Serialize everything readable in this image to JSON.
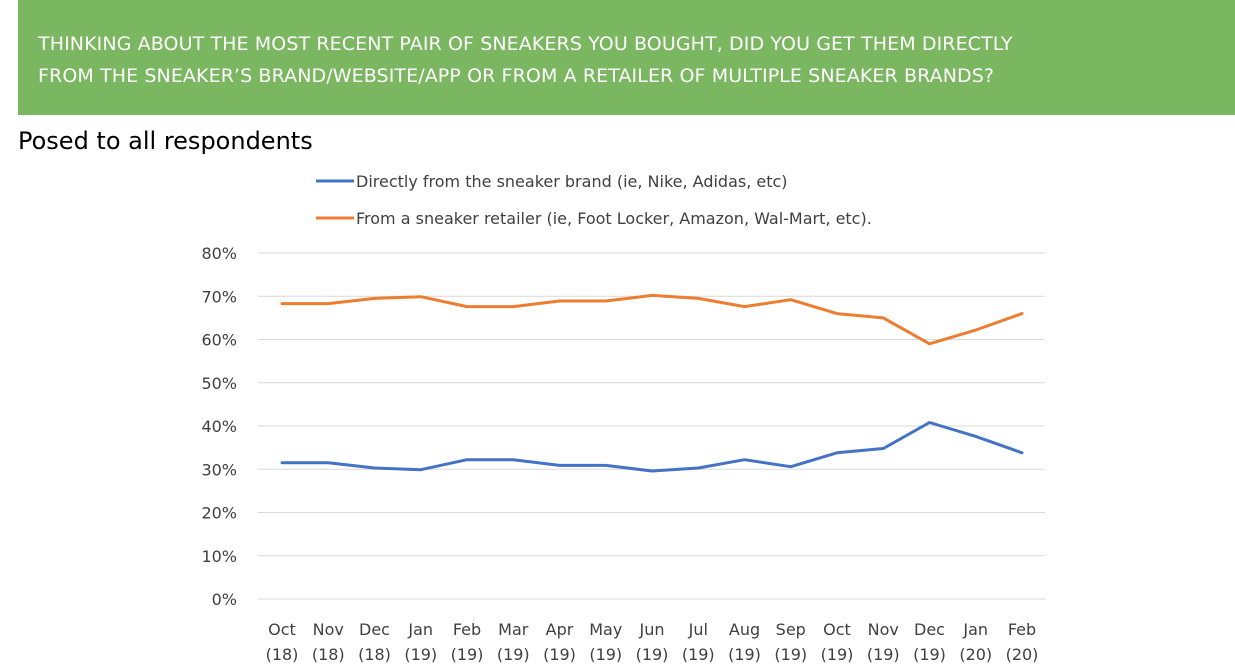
{
  "banner": {
    "line1": "THINKING ABOUT THE MOST RECENT PAIR OF SNEAKERS YOU BOUGHT, DID YOU GET THEM DIRECTLY",
    "line2": "FROM THE SNEAKER’S BRAND/WEBSITE/APP OR FROM A RETAILER OF MULTIPLE SNEAKER BRANDS?",
    "background": "#7bb661"
  },
  "subtitle": "Posed to all respondents",
  "chart_data": {
    "type": "line",
    "title": "",
    "xlabel": "",
    "ylabel": "",
    "ylim": [
      0,
      0.8
    ],
    "y_ticks": [
      "0%",
      "10%",
      "20%",
      "30%",
      "40%",
      "50%",
      "60%",
      "70%",
      "80%"
    ],
    "grid": true,
    "legend_position": "top",
    "categories": [
      [
        "Oct",
        "(18)"
      ],
      [
        "Nov",
        "(18)"
      ],
      [
        "Dec",
        "(18)"
      ],
      [
        "Jan",
        "(19)"
      ],
      [
        "Feb",
        "(19)"
      ],
      [
        "Mar",
        "(19)"
      ],
      [
        "Apr",
        "(19)"
      ],
      [
        "May",
        "(19)"
      ],
      [
        "Jun",
        "(19)"
      ],
      [
        "Jul",
        "(19)"
      ],
      [
        "Aug",
        "(19)"
      ],
      [
        "Sep",
        "(19)"
      ],
      [
        "Oct",
        "(19)"
      ],
      [
        "Nov",
        "(19)"
      ],
      [
        "Dec",
        "(19)"
      ],
      [
        "Jan",
        "(20)"
      ],
      [
        "Feb",
        "(20)"
      ]
    ],
    "series": [
      {
        "name": "Directly from the sneaker brand (ie, Nike, Adidas, etc)",
        "color": "#4472c4",
        "values": [
          0.315,
          0.315,
          0.303,
          0.299,
          0.322,
          0.322,
          0.309,
          0.309,
          0.296,
          0.303,
          0.322,
          0.306,
          0.338,
          0.348,
          0.408,
          0.376,
          0.338
        ]
      },
      {
        "name": "From a sneaker retailer (ie, Foot Locker, Amazon, Wal-Mart, etc).",
        "color": "#ed7d31",
        "values": [
          0.683,
          0.683,
          0.695,
          0.699,
          0.676,
          0.676,
          0.689,
          0.689,
          0.702,
          0.695,
          0.676,
          0.692,
          0.66,
          0.65,
          0.59,
          0.622,
          0.66
        ]
      }
    ]
  }
}
